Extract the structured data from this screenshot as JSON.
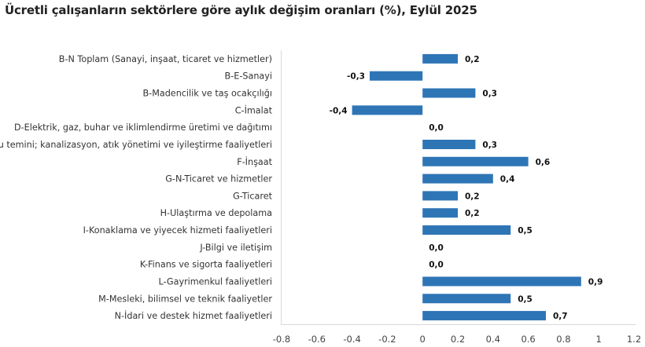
{
  "chart_data": {
    "type": "bar",
    "orientation": "horizontal",
    "title": "Ücretli çalışanların sektörlere göre aylık değişim oranları (%), Eylül 2025",
    "categories": [
      "B-N Toplam (Sanayi, inşaat, ticaret ve hizmetler)",
      "B-E-Sanayi",
      "B-Madencilik ve taş ocakçılığı",
      "C-İmalat",
      "D-Elektrik, gaz, buhar ve iklimlendirme üretimi ve dağıtımı",
      "E-Su temini; kanalizasyon, atık yönetimi ve iyileştirme faaliyetleri",
      "F-İnşaat",
      "G-N-Ticaret ve hizmetler",
      "G-Ticaret",
      "H-Ulaştırma ve depolama",
      "I-Konaklama ve yiyecek hizmeti faaliyetleri",
      "J-Bilgi ve iletişim",
      "K-Finans ve sigorta faaliyetleri",
      "L-Gayrimenkul faaliyetleri",
      "M-Mesleki, bilimsel ve teknik faaliyetler",
      "N-İdari ve destek hizmet faaliyetleri"
    ],
    "values": [
      0.2,
      -0.3,
      0.3,
      -0.4,
      0.0,
      0.3,
      0.6,
      0.4,
      0.2,
      0.2,
      0.5,
      0.0,
      0.0,
      0.9,
      0.5,
      0.7
    ],
    "data_labels": [
      "0,2",
      "-0,3",
      "0,3",
      "-0,4",
      "0,0",
      "0,3",
      "0,6",
      "0,4",
      "0,2",
      "0,2",
      "0,5",
      "0,0",
      "0,0",
      "0,9",
      "0,5",
      "0,7"
    ],
    "xlim": [
      -0.8,
      1.2
    ],
    "xticks": [
      "-0.8",
      "-0.6",
      "-0.4",
      "-0.2",
      "0",
      "0.2",
      "0.4",
      "0.6",
      "0.8",
      "1",
      "1.2"
    ],
    "xlabel": "",
    "ylabel": "",
    "grid": false,
    "bar_color": "#2e75b6"
  }
}
